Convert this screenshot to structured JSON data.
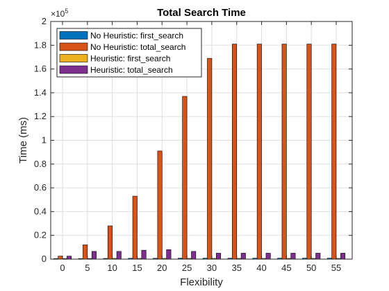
{
  "chart_data": {
    "type": "bar",
    "title": "Total Search Time",
    "xlabel": "Flexibility",
    "ylabel": "Time (ms)",
    "y_exponent_label": "×10",
    "y_exponent_power": "5",
    "categories": [
      "0",
      "5",
      "10",
      "15",
      "20",
      "25",
      "30",
      "35",
      "40",
      "45",
      "50",
      "55"
    ],
    "ylim": [
      0,
      200000
    ],
    "yticks": [
      0,
      20000,
      40000,
      60000,
      80000,
      100000,
      120000,
      140000,
      160000,
      180000,
      200000
    ],
    "ytick_labels": [
      "0",
      "0.2",
      "0.4",
      "0.6",
      "0.8",
      "1",
      "1.2",
      "1.4",
      "1.6",
      "1.8",
      "2"
    ],
    "grid": true,
    "legend_position": "top-left",
    "series": [
      {
        "name": "No Heuristic: first_search",
        "color": "#0072BD",
        "values": [
          300,
          500,
          600,
          700,
          700,
          800,
          800,
          800,
          800,
          800,
          800,
          800
        ]
      },
      {
        "name": "No Heuristic: total_search",
        "color": "#D95319",
        "values": [
          2500,
          12000,
          28000,
          53000,
          91000,
          137000,
          169000,
          181000,
          181000,
          181000,
          181000,
          181000
        ]
      },
      {
        "name": "Heuristic: first_search",
        "color": "#EDB120",
        "values": [
          300,
          500,
          600,
          600,
          600,
          600,
          600,
          600,
          600,
          600,
          600,
          600
        ]
      },
      {
        "name": "Heuristic: total_search",
        "color": "#7E2F8E",
        "values": [
          2500,
          6500,
          6500,
          7500,
          8000,
          6500,
          5000,
          5000,
          5000,
          5000,
          5000,
          5000
        ]
      }
    ]
  }
}
